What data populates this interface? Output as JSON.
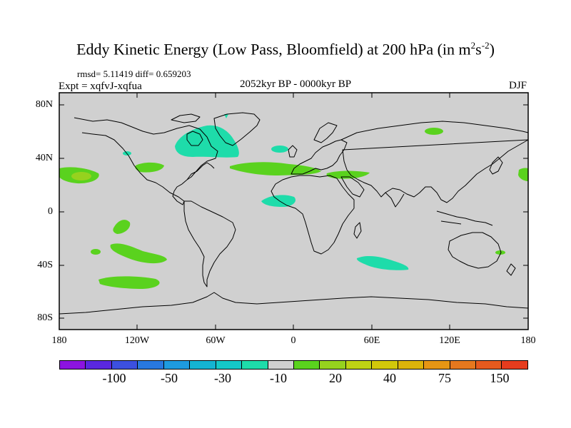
{
  "title": {
    "main": "Eddy Kinetic Energy (Low Pass, Bloomfield) at 200 hPa (in m",
    "sup1": "2",
    "mid": "s",
    "sup2": "-2",
    "close": ")"
  },
  "stats": "rmsd= 5.11419 diff= 0.659203",
  "expt": "Expt = xqfvJ-xqfua",
  "period": "2052kyr BP - 0000kyr BP",
  "season": "DJF",
  "lat_labels": [
    "80N",
    "40N",
    "0",
    "40S",
    "80S"
  ],
  "lon_labels": [
    "180",
    "120W",
    "60W",
    "0",
    "60E",
    "120E",
    "180"
  ],
  "colorbar": {
    "colors": [
      "#8c14e0",
      "#5a28e0",
      "#3c50e0",
      "#2878e0",
      "#1e9be0",
      "#14b4d2",
      "#14c8c8",
      "#1edcaa",
      "#d0d0d0",
      "#5ad21e",
      "#96d21e",
      "#bed214",
      "#d2c80a",
      "#dcb40a",
      "#e69614",
      "#e6781e",
      "#e65a1e",
      "#e63c1e"
    ],
    "labels": [
      "-100",
      "-50",
      "-30",
      "-10",
      "20",
      "40",
      "75",
      "150"
    ]
  },
  "map": {
    "ocean_color": "#d0d0d0",
    "pos_color": "#5ad21e",
    "neg_color": "#1edcaa",
    "strong_color": "#96d21e"
  }
}
